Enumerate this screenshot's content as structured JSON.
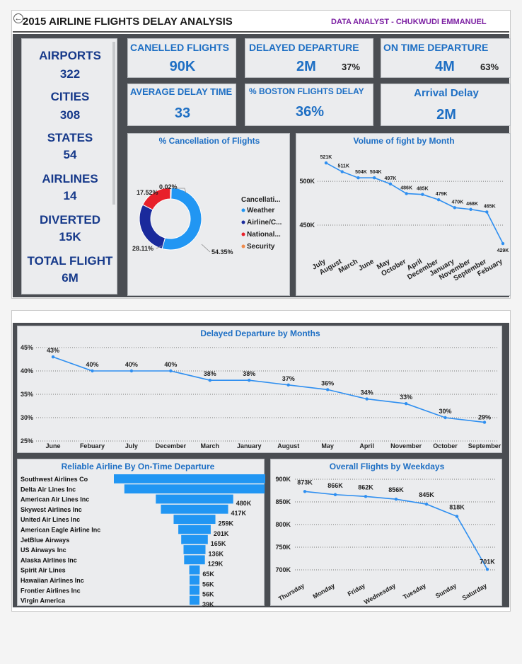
{
  "header": {
    "title": "2015 AIRLINE FLIGHTS DELAY ANALYSIS",
    "author": "DATA ANALYST - CHUKWUDI EMMANUEL",
    "back_icon": "back-arrow-icon"
  },
  "stats": [
    {
      "label": "AIRPORTS",
      "value": "322"
    },
    {
      "label": "CITIES",
      "value": "308"
    },
    {
      "label": "STATES",
      "value": "54"
    },
    {
      "label": "AIRLINES",
      "value": "14"
    },
    {
      "label": "DIVERTED",
      "value": "15K"
    },
    {
      "label": "TOTAL FLIGHT",
      "value": "6M"
    }
  ],
  "kpis": {
    "cancelled": {
      "label": "CANELLED FLIGHTS",
      "value": "90K"
    },
    "delayed": {
      "label": "DELAYED DEPARTURE",
      "value": "2M",
      "pct": "37%"
    },
    "ontime": {
      "label": "ON TIME DEPARTURE",
      "value": "4M",
      "pct": "63%"
    },
    "avg_delay": {
      "label": "AVERAGE DELAY TIME",
      "value": "33"
    },
    "boston": {
      "label": "% BOSTON FLIGHTS DELAY",
      "value": "36%"
    },
    "arrival": {
      "label": "Arrival Delay",
      "value": "2M"
    }
  },
  "colors": {
    "accent": "#1e6fc4",
    "title_blue": "#16398a",
    "line": "#2f8ff0",
    "weather": "#2196f3",
    "airline": "#1a2a9c",
    "national": "#e8202a",
    "security": "#f08a4b",
    "purple": "#7b1fa2"
  },
  "chart_data": [
    {
      "type": "pie",
      "title": "% Cancellation of Flights",
      "legend_title": "Cancellati...",
      "legend_position": "right",
      "labels": [
        "Weather",
        "Airline/C...",
        "National...",
        "Security"
      ],
      "values": [
        54.35,
        28.11,
        17.52,
        0.02
      ],
      "data_labels": [
        "54.35%",
        "28.11%",
        "17.52%",
        "0.02%"
      ]
    },
    {
      "type": "line",
      "title": "Volume of fight by Month",
      "x": [
        "July",
        "August",
        "March",
        "June",
        "May",
        "October",
        "April",
        "December",
        "January",
        "November",
        "September",
        "Febuary"
      ],
      "values": [
        521,
        511,
        504,
        504,
        497,
        486,
        485,
        479,
        470,
        468,
        465,
        429
      ],
      "data_labels": [
        "521K",
        "511K",
        "504K",
        "504K",
        "497K",
        "486K",
        "485K",
        "479K",
        "470K",
        "468K",
        "465K",
        "429K"
      ],
      "yticks": [
        "500K",
        "450K"
      ],
      "ylim": [
        425,
        530
      ],
      "grid": true
    },
    {
      "type": "line",
      "title": "Delayed Departure by Months",
      "x": [
        "June",
        "Febuary",
        "July",
        "December",
        "March",
        "January",
        "August",
        "May",
        "April",
        "November",
        "October",
        "September"
      ],
      "values": [
        43,
        40,
        40,
        40,
        38,
        38,
        37,
        36,
        34,
        33,
        30,
        29
      ],
      "data_labels": [
        "43%",
        "40%",
        "40%",
        "40%",
        "38%",
        "38%",
        "37%",
        "36%",
        "34%",
        "33%",
        "30%",
        "29%"
      ],
      "yticks": [
        "45%",
        "40%",
        "35%",
        "30%",
        "25%"
      ],
      "ylim": [
        25,
        45
      ],
      "grid": true
    },
    {
      "type": "bar",
      "orientation": "horizontal-funnel",
      "title": "Reliable Airline By On-Time Departure",
      "categories": [
        "Southwest Airlines Co",
        "Delta Air Lines Inc",
        "American Air Lines Inc",
        "Skywest Airlines Inc",
        "United Air Lines Inc",
        "American Eagle Airline Inc",
        "JetBlue Airways",
        "US Airways Inc",
        "Alaska Airlines Inc",
        "Spirit Air Lines",
        "Hawaiian Airlines Inc",
        "Frontier Airlines Inc",
        "Virgin America"
      ],
      "values": [
        1000,
        870,
        480,
        417,
        259,
        201,
        165,
        136,
        129,
        65,
        56,
        56,
        39
      ],
      "data_labels": [
        "",
        "",
        "480K",
        "417K",
        "259K",
        "201K",
        "165K",
        "136K",
        "129K",
        "65K",
        "56K",
        "56K",
        "39K"
      ]
    },
    {
      "type": "line",
      "title": "Overall Flights by Weekdays",
      "x": [
        "Thursday",
        "Monday",
        "Friday",
        "Wednesday",
        "Tuesday",
        "Sunday",
        "Saturday"
      ],
      "values": [
        873,
        866,
        862,
        856,
        845,
        818,
        701
      ],
      "data_labels": [
        "873K",
        "866K",
        "862K",
        "856K",
        "845K",
        "818K",
        "701K"
      ],
      "yticks": [
        "900K",
        "850K",
        "800K",
        "750K",
        "700K"
      ],
      "ylim": [
        700,
        900
      ],
      "grid": true
    }
  ]
}
